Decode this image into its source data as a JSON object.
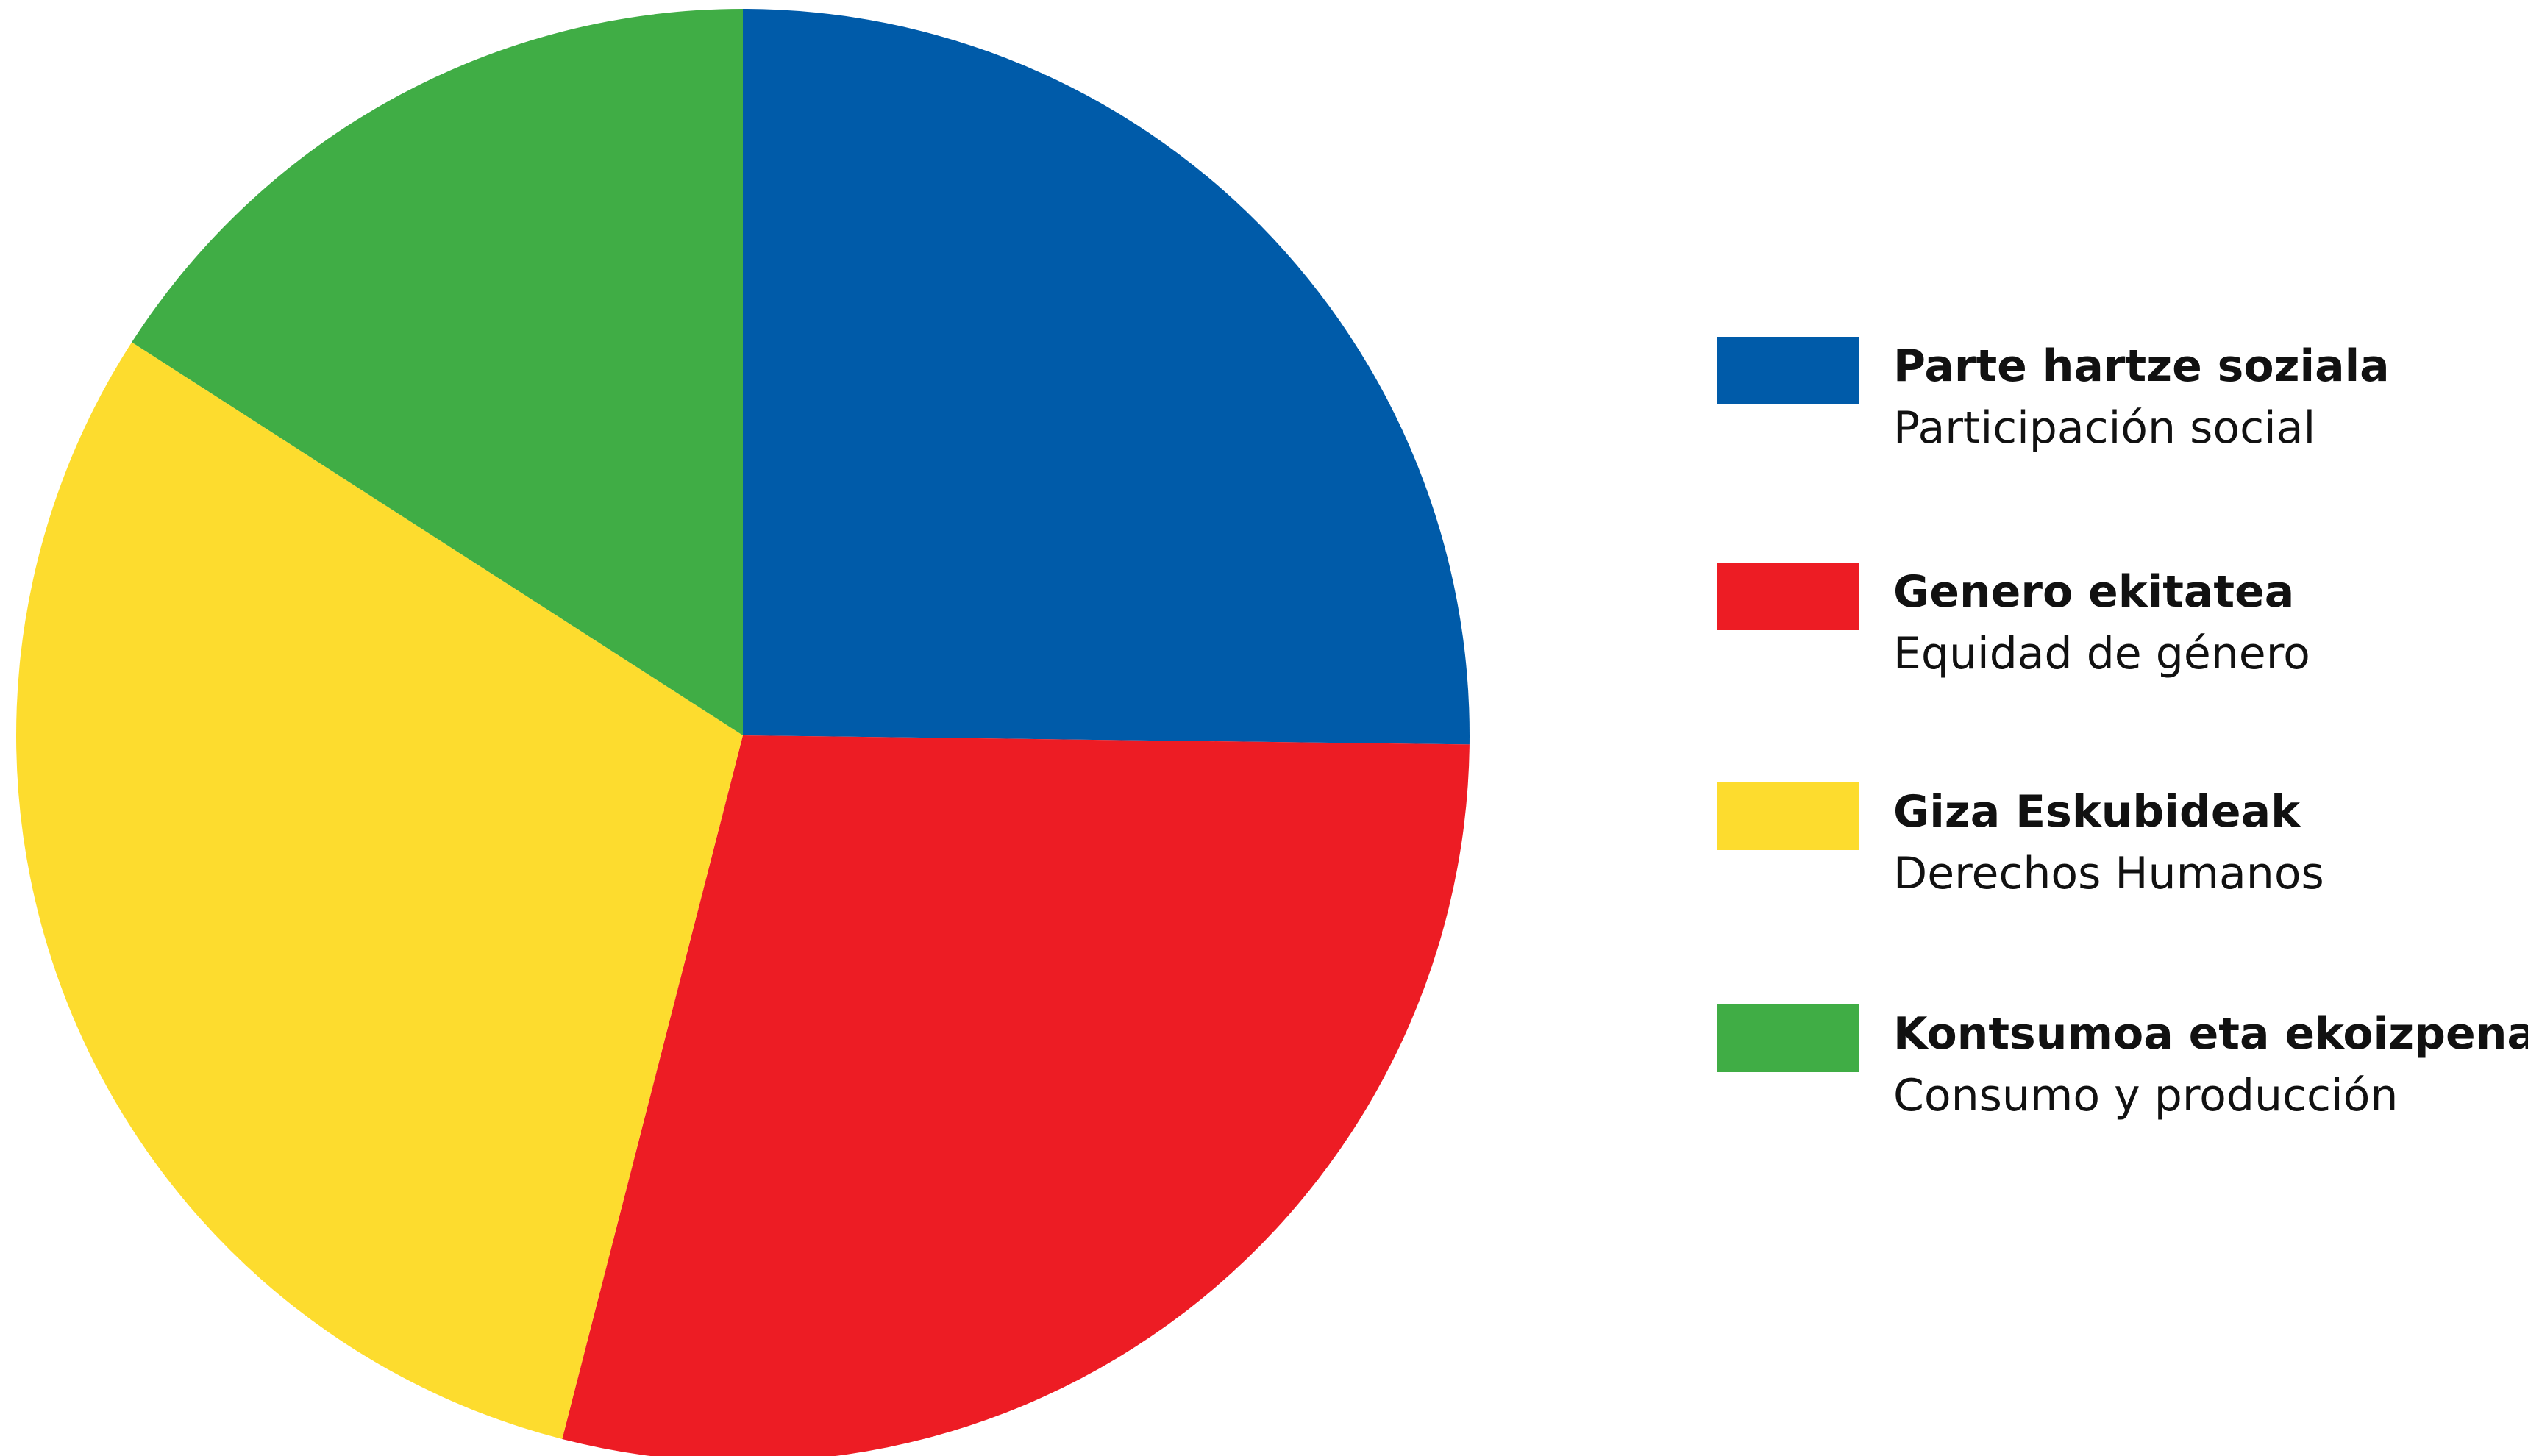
{
  "chart_data": {
    "type": "pie",
    "title": "",
    "start_angle_deg": 0,
    "direction": "clockwise",
    "legend_position": "right",
    "series": [
      {
        "name": "Parte hartze soziala",
        "subname": "Participación social",
        "value": 25.2,
        "color": "#005BA9"
      },
      {
        "name": "Genero ekitatea",
        "subname": "Equidad de género",
        "value": 28.8,
        "color": "#ED1C24"
      },
      {
        "name": "Giza Eskubideak",
        "subname": "Derechos Humanos",
        "value": 30.1,
        "color": "#FDDC2E"
      },
      {
        "name": "Kontsumoa eta ekoizpena",
        "subname": "Consumo y producción",
        "value": 15.9,
        "color": "#40AD45"
      }
    ]
  },
  "legend": {
    "items": [
      {
        "label": "Parte hartze soziala",
        "sublabel": "Participación social",
        "color": "#005BA9"
      },
      {
        "label": "Genero ekitatea",
        "sublabel": "Equidad de género",
        "color": "#ED1C24"
      },
      {
        "label": "Giza Eskubideak",
        "sublabel": "Derechos Humanos",
        "color": "#FDDC2E"
      },
      {
        "label": "Kontsumoa eta ekoizpena",
        "sublabel": "Consumo y producción",
        "color": "#40AD45"
      }
    ]
  }
}
